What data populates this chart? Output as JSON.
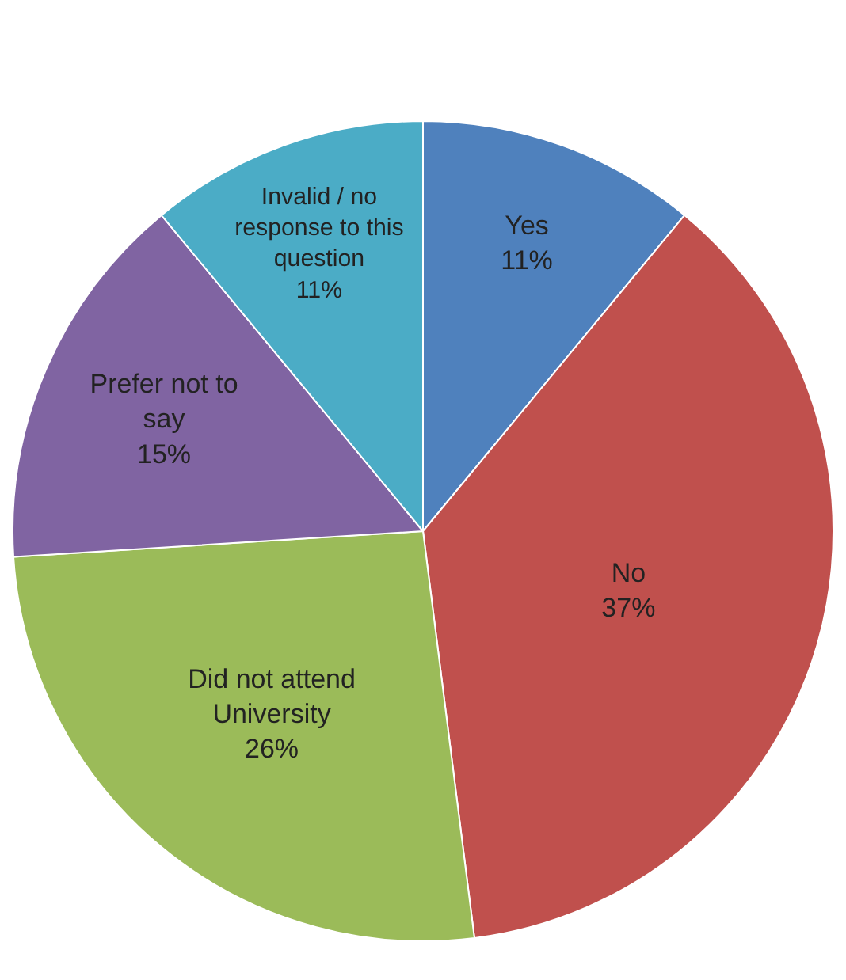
{
  "chart_data": {
    "type": "pie",
    "categories": [
      "Yes",
      "No",
      "Did not attend University",
      "Prefer not to say",
      "Invalid / no response to this question"
    ],
    "values": [
      11,
      37,
      26,
      15,
      11
    ],
    "value_labels": [
      "11%",
      "37%",
      "26%",
      "15%",
      "11%"
    ],
    "colors": [
      "#4f81bd",
      "#c0504d",
      "#9bbb59",
      "#8064a2",
      "#4bacc6"
    ],
    "legend": false
  }
}
